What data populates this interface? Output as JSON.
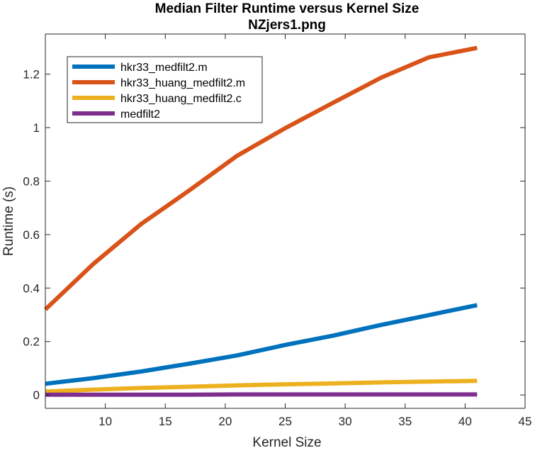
{
  "chart_data": {
    "type": "line",
    "title": "Median Filter Runtime versus Kernel Size",
    "subtitle": "NZjers1.png",
    "xlabel": "Kernel Size",
    "ylabel": "Runtime (s)",
    "xlim": [
      5,
      45
    ],
    "ylim": [
      -0.05,
      1.35
    ],
    "x_ticks": [
      10,
      15,
      20,
      25,
      30,
      35,
      40,
      45
    ],
    "y_ticks": [
      0,
      0.2,
      0.4,
      0.6,
      0.8,
      1,
      1.2
    ],
    "x_tick_labels": [
      "10",
      "15",
      "20",
      "25",
      "30",
      "35",
      "40",
      "45"
    ],
    "y_tick_labels": [
      "0",
      "0.2",
      "0.4",
      "0.6",
      "0.8",
      "1",
      "1.2"
    ],
    "grid": false,
    "legend_position": "top-left",
    "x": [
      5,
      9,
      13,
      17,
      21,
      25,
      29,
      33,
      37,
      41
    ],
    "series": [
      {
        "name": "hkr33_medfilt2.m",
        "color": "#0072BD",
        "values": [
          0.042,
          0.063,
          0.088,
          0.117,
          0.148,
          0.187,
          0.222,
          0.262,
          0.299,
          0.336
        ]
      },
      {
        "name": "hkr33_huang_medfilt2.m",
        "color": "#D95319",
        "values": [
          0.32,
          0.49,
          0.64,
          0.765,
          0.895,
          0.998,
          1.093,
          1.187,
          1.263,
          1.298
        ]
      },
      {
        "name": "hkr33_huang_medfilt2.c",
        "color": "#EDB120",
        "values": [
          0.013,
          0.02,
          0.026,
          0.031,
          0.036,
          0.04,
          0.043,
          0.047,
          0.05,
          0.053
        ]
      },
      {
        "name": "medfilt2",
        "color": "#7E2F8E",
        "values": [
          0.001,
          0.001,
          0.001,
          0.001,
          0.002,
          0.002,
          0.002,
          0.002,
          0.002,
          0.002
        ]
      }
    ]
  }
}
